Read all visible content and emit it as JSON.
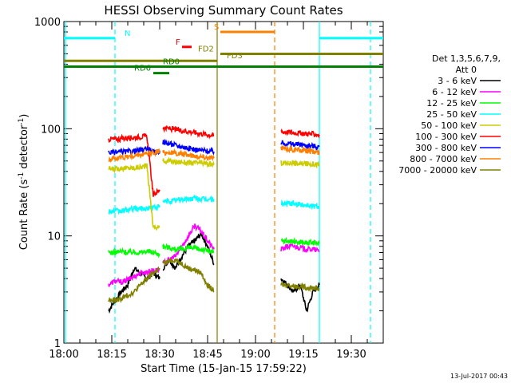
{
  "chart_data": {
    "type": "line",
    "title": "HESSI Observing Summary Count Rates",
    "xlabel": "Start Time (15-Jan-15 17:59:22)",
    "ylabel_main": "Count Rate (s",
    "ylabel_sup1": "-1",
    "ylabel_mid": " detector",
    "ylabel_sup2": "-1",
    "ylabel_end": ")",
    "yscale": "log",
    "ylim": [
      1,
      1000
    ],
    "xlim_min": [
      0,
      100
    ],
    "x_ticks": [
      {
        "min": 0,
        "label": "18:00"
      },
      {
        "min": 15,
        "label": "18:15"
      },
      {
        "min": 30,
        "label": "18:30"
      },
      {
        "min": 45,
        "label": "18:45"
      },
      {
        "min": 60,
        "label": "19:00"
      },
      {
        "min": 75,
        "label": "19:15"
      },
      {
        "min": 90,
        "label": "19:30"
      }
    ],
    "y_ticks": [
      {
        "value": 1,
        "label": "1"
      },
      {
        "value": 10,
        "label": "10"
      },
      {
        "value": 100,
        "label": "100"
      },
      {
        "value": 1000,
        "label": "1000"
      }
    ],
    "legend": {
      "placement": "right",
      "header1": "Det 1,3,5,6,7,9,",
      "header2": "Att 0"
    },
    "series": [
      {
        "name": "3 - 6 keV",
        "color": "#000000",
        "segments": [
          {
            "x": [
              14,
              16,
              18,
              20,
              22,
              24,
              26,
              28,
              30
            ],
            "y": [
              2.0,
              2.5,
              3.0,
              3.5,
              5.0,
              4.5,
              4.0,
              4.5,
              4.0
            ]
          },
          {
            "x": [
              31,
              33,
              35,
              37,
              39,
              41,
              43,
              45,
              47
            ],
            "y": [
              5.0,
              6.0,
              5.0,
              6.5,
              8.0,
              9.0,
              10.5,
              8.0,
              5.5
            ]
          },
          {
            "x": [
              68,
              70,
              72,
              74,
              76,
              78,
              80
            ],
            "y": [
              4.0,
              3.5,
              3.0,
              3.5,
              2.0,
              3.0,
              3.5
            ]
          }
        ]
      },
      {
        "name": "6 - 12 keV",
        "color": "#ff00ff",
        "segments": [
          {
            "x": [
              14,
              16,
              18,
              20,
              22,
              24,
              26,
              28,
              30
            ],
            "y": [
              3.5,
              3.8,
              3.7,
              3.9,
              4.2,
              4.5,
              4.6,
              4.8,
              4.8
            ]
          },
          {
            "x": [
              31,
              33,
              35,
              37,
              39,
              41,
              43,
              45,
              47
            ],
            "y": [
              5.5,
              6.0,
              6.5,
              8.0,
              10.0,
              12.5,
              11.0,
              9.0,
              7.5
            ]
          },
          {
            "x": [
              68,
              70,
              72,
              74,
              76,
              78,
              80
            ],
            "y": [
              7.5,
              8.0,
              8.0,
              7.8,
              7.5,
              7.5,
              7.2
            ]
          }
        ]
      },
      {
        "name": "12 - 25 keV",
        "color": "#00ff00",
        "segments": [
          {
            "x": [
              14,
              16,
              18,
              20,
              22,
              24,
              26,
              28,
              30
            ],
            "y": [
              7.0,
              7.0,
              7.2,
              7.0,
              7.1,
              7.0,
              7.2,
              7.0,
              6.8
            ]
          },
          {
            "x": [
              31,
              33,
              35,
              37,
              39,
              41,
              43,
              45,
              47
            ],
            "y": [
              8.0,
              7.8,
              7.5,
              7.5,
              7.8,
              7.6,
              7.5,
              7.3,
              7.0
            ]
          },
          {
            "x": [
              68,
              70,
              72,
              74,
              76,
              78,
              80
            ],
            "y": [
              9.0,
              9.0,
              8.8,
              8.8,
              8.6,
              8.6,
              8.5
            ]
          }
        ]
      },
      {
        "name": "25 - 50 keV",
        "color": "#00ffff",
        "segments": [
          {
            "x": [
              14,
              16,
              18,
              20,
              22,
              24,
              26,
              28,
              30
            ],
            "y": [
              17,
              17,
              17,
              17.5,
              18,
              18,
              18,
              18.5,
              18.5
            ]
          },
          {
            "x": [
              31,
              33,
              35,
              37,
              39,
              41,
              43,
              45,
              47
            ],
            "y": [
              21,
              21,
              21.5,
              22,
              22,
              22.5,
              22,
              22,
              22
            ]
          },
          {
            "x": [
              68,
              70,
              72,
              74,
              76,
              78,
              80
            ],
            "y": [
              20,
              20,
              20,
              19.5,
              19.5,
              19,
              19
            ]
          }
        ]
      },
      {
        "name": "50 - 100 keV",
        "color": "#cccc00",
        "segments": [
          {
            "x": [
              14,
              16,
              18,
              20,
              22,
              24,
              26,
              28,
              30
            ],
            "y": [
              42,
              42,
              43,
              43,
              43,
              44,
              45,
              12,
              12
            ]
          },
          {
            "x": [
              31,
              33,
              35,
              37,
              39,
              41,
              43,
              45,
              47
            ],
            "y": [
              50,
              50,
              49,
              49,
              48,
              48,
              48,
              47,
              46
            ]
          },
          {
            "x": [
              68,
              70,
              72,
              74,
              76,
              78,
              80
            ],
            "y": [
              48,
              48,
              48,
              47,
              47,
              47,
              46
            ]
          }
        ]
      },
      {
        "name": "100 - 300 keV",
        "color": "#ff0000",
        "segments": [
          {
            "x": [
              14,
              16,
              18,
              20,
              22,
              24,
              26,
              28,
              30
            ],
            "y": [
              80,
              80,
              81,
              82,
              83,
              84,
              85,
              24,
              27
            ]
          },
          {
            "x": [
              31,
              33,
              35,
              37,
              39,
              41,
              43,
              45,
              47
            ],
            "y": [
              102,
              100,
              98,
              96,
              94,
              92,
              90,
              88,
              86
            ]
          },
          {
            "x": [
              68,
              70,
              72,
              74,
              76,
              78,
              80
            ],
            "y": [
              94,
              93,
              92,
              91,
              90,
              89,
              88
            ]
          }
        ]
      },
      {
        "name": "300 - 800 keV",
        "color": "#0000ff",
        "segments": [
          {
            "x": [
              14,
              16,
              18,
              20,
              22,
              24,
              26,
              28,
              30
            ],
            "y": [
              60,
              60,
              61,
              61,
              62,
              63,
              65,
              60,
              62
            ]
          },
          {
            "x": [
              31,
              33,
              35,
              37,
              39,
              41,
              43,
              45,
              47
            ],
            "y": [
              75,
              73,
              70,
              68,
              66,
              64,
              63,
              62,
              61
            ]
          },
          {
            "x": [
              68,
              70,
              72,
              74,
              76,
              78,
              80
            ],
            "y": [
              74,
              73,
              72,
              71,
              70,
              69,
              68
            ]
          }
        ]
      },
      {
        "name": "800 - 7000 keV",
        "color": "#ff8000",
        "segments": [
          {
            "x": [
              14,
              16,
              18,
              20,
              22,
              24,
              26,
              28,
              30
            ],
            "y": [
              52,
              53,
              54,
              55,
              56,
              57,
              58,
              60,
              62
            ]
          },
          {
            "x": [
              31,
              33,
              35,
              37,
              39,
              41,
              43,
              45,
              47
            ],
            "y": [
              60,
              60,
              59,
              58,
              57,
              56,
              55,
              54,
              53
            ]
          },
          {
            "x": [
              68,
              70,
              72,
              74,
              76,
              78,
              80
            ],
            "y": [
              66,
              65,
              64,
              63,
              62,
              61,
              60
            ]
          }
        ]
      },
      {
        "name": "7000 - 20000 keV",
        "color": "#808000",
        "segments": [
          {
            "x": [
              14,
              16,
              18,
              20,
              22,
              24,
              26,
              28,
              30
            ],
            "y": [
              2.5,
              2.5,
              2.6,
              2.8,
              3.0,
              3.5,
              4.0,
              4.5,
              5.0
            ]
          },
          {
            "x": [
              31,
              33,
              35,
              37,
              39,
              41,
              43,
              45,
              47
            ],
            "y": [
              5.5,
              5.8,
              6.0,
              5.5,
              5.0,
              4.8,
              4.5,
              3.5,
              3.0
            ]
          },
          {
            "x": [
              68,
              70,
              72,
              74,
              76,
              78,
              80
            ],
            "y": [
              3.5,
              3.5,
              3.4,
              3.4,
              3.3,
              3.3,
              3.2
            ]
          }
        ]
      }
    ],
    "flag_bars": [
      {
        "label": "N",
        "color": "#00ffff",
        "y": 700,
        "segments": [
          [
            0,
            16
          ],
          [
            80,
            100
          ]
        ],
        "label_x": 19
      },
      {
        "label": "S",
        "color": "#ff8000",
        "y": 800,
        "segments": [
          [
            49,
            66
          ]
        ],
        "label_x": 47
      },
      {
        "label": "F",
        "color": "#ff0000",
        "y": 580,
        "segments": [
          [
            37,
            40
          ]
        ],
        "label_x": 35
      },
      {
        "label": "FD2",
        "color": "#808000",
        "y": 500,
        "segments": [
          [
            49,
            100
          ]
        ],
        "label_x": 42
      },
      {
        "label": "FD3",
        "color": "#808000",
        "y": 430,
        "segments": [
          [
            0,
            48
          ]
        ],
        "label_x": 51
      },
      {
        "label": "RD0",
        "color": "#008000",
        "y": 380,
        "segments": [
          [
            0,
            100
          ]
        ],
        "label_x": 31
      },
      {
        "label": "RD6",
        "color": "#008000",
        "y": 330,
        "segments": [
          [
            28,
            33
          ]
        ],
        "label_x": 22
      }
    ],
    "vertical_markers": [
      {
        "x": 16,
        "color": "#00ffff",
        "style": "dashed"
      },
      {
        "x": 48,
        "color": "#808000",
        "style": "solid"
      },
      {
        "x": 66,
        "color": "#ff8000",
        "style": "dashed"
      },
      {
        "x": 80,
        "color": "#00ffff",
        "style": "solid"
      },
      {
        "x": 96,
        "color": "#00ffff",
        "style": "dashed"
      },
      {
        "x": 0.5,
        "color": "#00ffff",
        "style": "solid"
      }
    ]
  },
  "timestamp": "13-Jul-2017 00:43"
}
